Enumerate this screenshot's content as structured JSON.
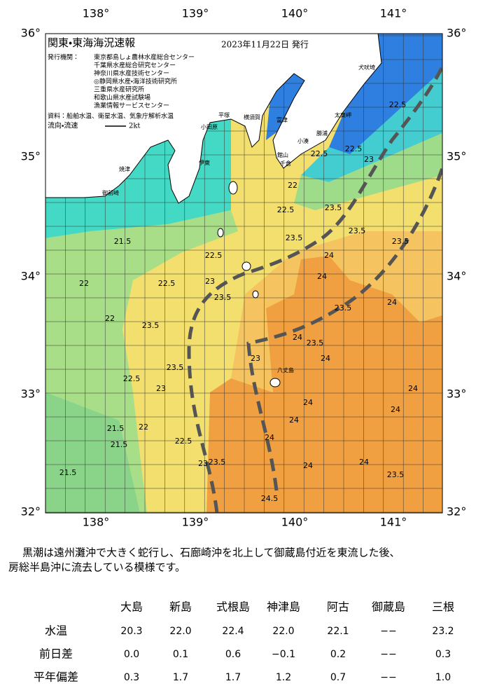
{
  "map": {
    "title": "関東・東海海況速報",
    "issued": "2023年11月22日 発行",
    "publisher_label": "発行機関：",
    "publishers": [
      "東京都島しょ農林水産総合センター",
      "千葉県水産総合研究センター",
      "神奈川県水産技術センター",
      "◎静岡県水産・海洋技術研究所",
      "三重県水産研究所",
      "和歌山県水産試験場",
      "漁業情報サービスセンター"
    ],
    "source": "資料：船舶水温、衛星水温、気象庁解析水温",
    "flow_legend": "流向・流速",
    "flow_scale": "2kt",
    "lon_ticks": [
      "138°",
      "139°",
      "140°",
      "141°"
    ],
    "lat_ticks": [
      "32°",
      "33°",
      "34°",
      "35°",
      "36°"
    ],
    "place_names": [
      "犬吠埼",
      "太東岬",
      "勝浦",
      "小湊",
      "館山",
      "千倉",
      "横須賀",
      "富津",
      "平塚",
      "小田原",
      "伊東",
      "焼津",
      "御前崎",
      "八丈島"
    ],
    "contour_labels": [
      "22",
      "22.5",
      "23.5",
      "22.5",
      "22.5",
      "23",
      "22.5",
      "21.5",
      "22",
      "22",
      "22.5",
      "23",
      "23.5",
      "22.5",
      "23.5",
      "23.5",
      "24",
      "24",
      "23.5",
      "24",
      "24",
      "23.5",
      "23",
      "24",
      "23.5",
      "23.5",
      "22.5",
      "23",
      "22",
      "21.5",
      "21.5",
      "21.5",
      "22.5",
      "23",
      "23.5",
      "24",
      "24",
      "24",
      "24",
      "24",
      "23.5",
      "24.5",
      "24",
      "24",
      "23.5"
    ]
  },
  "caption": [
    "黒潮は遠州灘沖で大きく蛇行し、石廊崎沖を北上して御蔵島付近を東流した後、",
    "房総半島沖に流去している模様です。"
  ],
  "table": {
    "columns": [
      "大島",
      "新島",
      "式根島",
      "神津島",
      "阿古",
      "御蔵島",
      "三根"
    ],
    "rows": [
      {
        "label": "水温",
        "values": [
          "20.3",
          "22.0",
          "22.4",
          "22.0",
          "22.1",
          "−−",
          "23.2"
        ]
      },
      {
        "label": "前日差",
        "values": [
          "0.0",
          "0.1",
          "0.6",
          "−0.1",
          "0.2",
          "−−",
          "0.3"
        ]
      },
      {
        "label": "平年偏差",
        "values": [
          "0.3",
          "1.7",
          "1.7",
          "1.2",
          "0.7",
          "−−",
          "1.0"
        ]
      }
    ]
  }
}
